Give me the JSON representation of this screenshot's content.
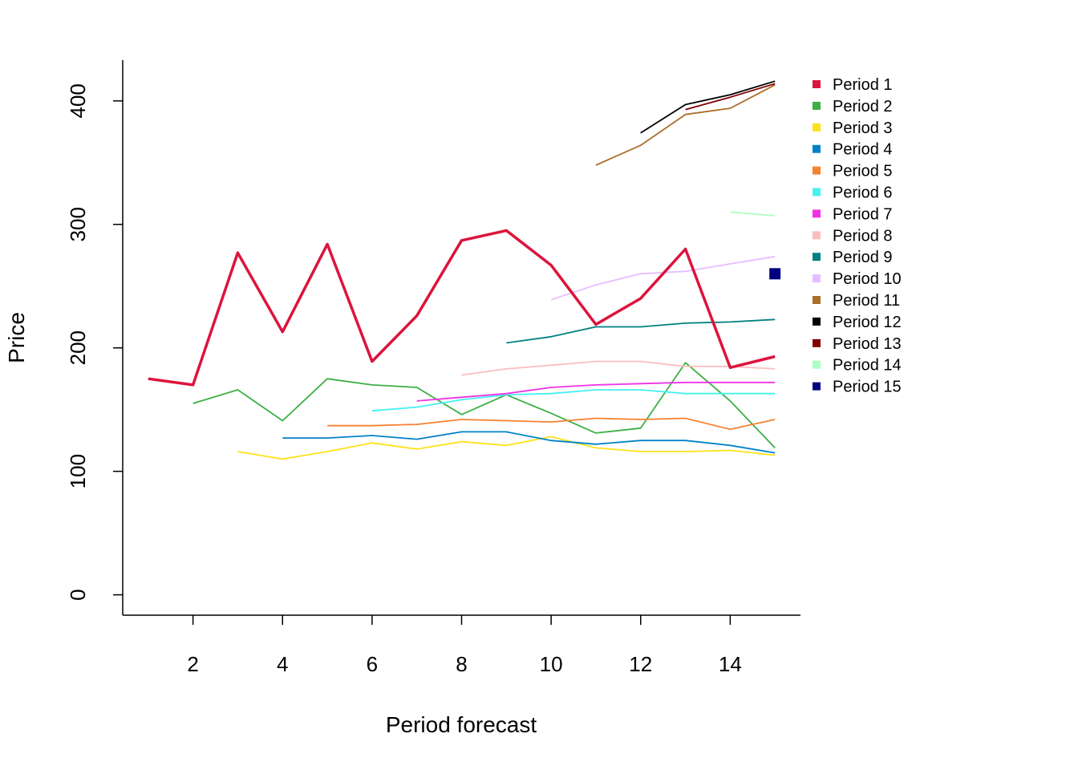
{
  "chart_data": {
    "type": "line",
    "xlabel": "Period forecast",
    "ylabel": "Price",
    "xlim": [
      0.43,
      15.57
    ],
    "ylim": [
      -16.5,
      433
    ],
    "x_ticks": [
      2,
      4,
      6,
      8,
      10,
      12,
      14
    ],
    "y_ticks": [
      0,
      100,
      200,
      300,
      400
    ],
    "grid": false,
    "legend_position": "top-right, outside plot",
    "series": [
      {
        "name": "Period 1",
        "color": "#DC143C",
        "emphasis": true,
        "x": [
          1,
          2,
          3,
          4,
          5,
          6,
          7,
          8,
          9,
          10,
          11,
          12,
          13,
          14,
          15
        ],
        "values": [
          175,
          170,
          277,
          213,
          284,
          189,
          226,
          287,
          295,
          267,
          219,
          240,
          280,
          184,
          193
        ]
      },
      {
        "name": "Period 2",
        "color": "#3CB044",
        "x": [
          2,
          3,
          4,
          5,
          6,
          7,
          8,
          9,
          10,
          11,
          12,
          13,
          14,
          15
        ],
        "values": [
          155,
          166,
          141,
          175,
          170,
          168,
          146,
          162,
          147,
          131,
          135,
          188,
          157,
          119
        ]
      },
      {
        "name": "Period 3",
        "color": "#FFE119",
        "x": [
          3,
          4,
          5,
          6,
          7,
          8,
          9,
          10,
          11,
          12,
          13,
          14,
          15
        ],
        "values": [
          116,
          110,
          116,
          123,
          118,
          124,
          121,
          128,
          119,
          116,
          116,
          117,
          113
        ]
      },
      {
        "name": "Period 4",
        "color": "#0082C8",
        "x": [
          4,
          5,
          6,
          7,
          8,
          9,
          10,
          11,
          12,
          13,
          14,
          15
        ],
        "values": [
          127,
          127,
          129,
          126,
          132,
          132,
          125,
          122,
          125,
          125,
          121,
          115
        ]
      },
      {
        "name": "Period 5",
        "color": "#F58231",
        "x": [
          5,
          6,
          7,
          8,
          9,
          10,
          11,
          12,
          13,
          14,
          15
        ],
        "values": [
          137,
          137,
          138,
          142,
          141,
          140,
          143,
          142,
          143,
          134,
          142
        ]
      },
      {
        "name": "Period 6",
        "color": "#46F0F0",
        "x": [
          6,
          7,
          8,
          9,
          10,
          11,
          12,
          13,
          14,
          15
        ],
        "values": [
          149,
          152,
          158,
          162,
          163,
          166,
          166,
          163,
          163,
          163
        ]
      },
      {
        "name": "Period 7",
        "color": "#F032E6",
        "x": [
          7,
          8,
          9,
          10,
          11,
          12,
          13,
          14,
          15
        ],
        "values": [
          157,
          160,
          163,
          168,
          170,
          171,
          172,
          172,
          172
        ]
      },
      {
        "name": "Period 8",
        "color": "#FABEBE",
        "x": [
          8,
          9,
          10,
          11,
          12,
          13,
          14,
          15
        ],
        "values": [
          178,
          183,
          186,
          189,
          189,
          185,
          185,
          183
        ]
      },
      {
        "name": "Period 9",
        "color": "#008080",
        "x": [
          9,
          10,
          11,
          12,
          13,
          14,
          15
        ],
        "values": [
          204,
          209,
          217,
          217,
          220,
          221,
          223
        ]
      },
      {
        "name": "Period 10",
        "color": "#E6BEFF",
        "x": [
          10,
          11,
          12,
          13,
          14,
          15
        ],
        "values": [
          239,
          251,
          260,
          262,
          268,
          274
        ]
      },
      {
        "name": "Period 11",
        "color": "#AA6E28",
        "x": [
          11,
          12,
          13,
          14,
          15
        ],
        "values": [
          348,
          364,
          389,
          394,
          413
        ]
      },
      {
        "name": "Period 12",
        "color": "#000000",
        "x": [
          12,
          13,
          14,
          15
        ],
        "values": [
          374,
          397,
          405,
          416
        ]
      },
      {
        "name": "Period 13",
        "color": "#800000",
        "x": [
          13,
          14,
          15
        ],
        "values": [
          393,
          403,
          414
        ]
      },
      {
        "name": "Period 14",
        "color": "#AAFFC3",
        "x": [
          14,
          15
        ],
        "values": [
          310,
          307
        ]
      },
      {
        "name": "Period 15",
        "color": "#000080",
        "x": [
          15
        ],
        "values": [
          260
        ]
      }
    ]
  }
}
